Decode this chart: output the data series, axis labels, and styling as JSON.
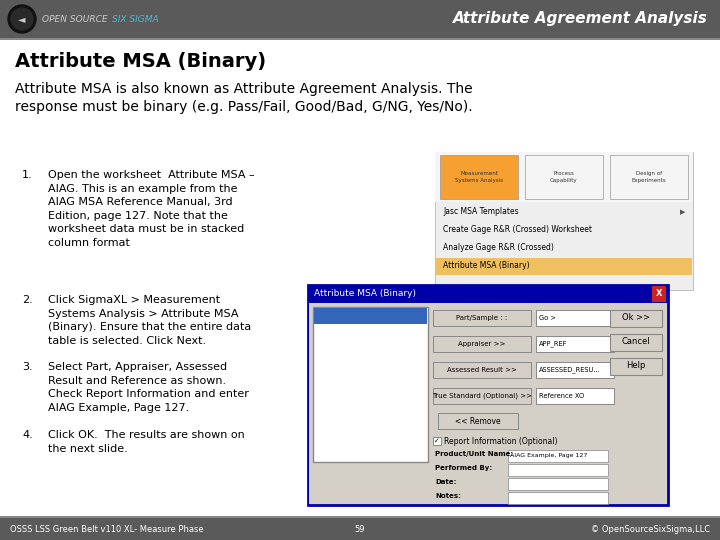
{
  "title_slide": "Attribute Agreement Analysis",
  "header_subtitle": "Attribute MSA (Binary)",
  "intro_text": "Attribute MSA is also known as Attribute Agreement Analysis. The\nresponse must be binary (e.g. Pass/Fail, Good/Bad, G/NG, Yes/No).",
  "steps": [
    {
      "num": "1.",
      "text": "Open the worksheet  Attribute MSA –\nAIAG. This is an example from the\nAIAG MSA Reference Manual, 3rd\nEdition, page 127. Note that the\nworksheet data must be in stacked\ncolumn format"
    },
    {
      "num": "2.",
      "text": "Click SigmaXL > Measurement\nSystems Analysis > Attribute MSA\n(Binary). Ensure that the entire data\ntable is selected. Click Next."
    },
    {
      "num": "3.",
      "text": "Select Part, Appraiser, Assessed\nResult and Reference as shown.\nCheck Report Information and enter\nAIAG Example, Page 127."
    },
    {
      "num": "4.",
      "text": "Click OK.  The results are shown on\nthe next slide."
    }
  ],
  "footer_left": "OSSS LSS Green Belt v110 XL- Measure Phase",
  "footer_center": "59",
  "footer_right": "© OpenSourceSixSigma,LLC",
  "header_bg": "#5a5a5a",
  "header_title_color": "#ffffff",
  "slide_title_color": "#000000",
  "accent_color": "#4db8d4",
  "logo_bg": "#1a1a1a",
  "footer_bg": "#5a5a5a",
  "footer_color": "#ffffff",
  "body_bg": "#ffffff",
  "divider_color": "#888888"
}
